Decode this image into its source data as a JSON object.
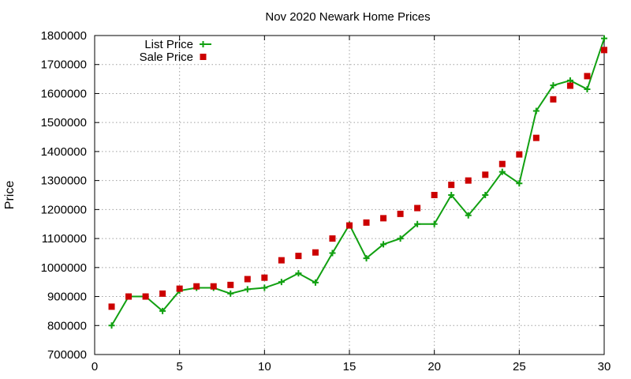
{
  "chart_data": {
    "type": "line",
    "title": "Nov 2020 Newark Home Prices",
    "ylabel": "Price",
    "xlabel": "",
    "xlim": [
      0,
      30
    ],
    "ylim": [
      700000,
      1800000
    ],
    "xticks": [
      0,
      5,
      10,
      15,
      20,
      25,
      30
    ],
    "yticks": [
      700000,
      800000,
      900000,
      1000000,
      1100000,
      1200000,
      1300000,
      1400000,
      1500000,
      1600000,
      1700000,
      1800000
    ],
    "grid": true,
    "legend_position": "top-left",
    "x": [
      1,
      2,
      3,
      4,
      5,
      6,
      7,
      8,
      9,
      10,
      11,
      12,
      13,
      14,
      15,
      16,
      17,
      18,
      19,
      20,
      21,
      22,
      23,
      24,
      25,
      26,
      27,
      28,
      29,
      30
    ],
    "series": [
      {
        "name": "List Price",
        "style": "lines-points",
        "color": "#11a011",
        "marker": "plus",
        "values": [
          800000,
          900000,
          900000,
          850000,
          920000,
          930000,
          930000,
          910000,
          925000,
          930000,
          950000,
          980000,
          948000,
          1050000,
          1148000,
          1032000,
          1080000,
          1100000,
          1150000,
          1150000,
          1250000,
          1180000,
          1250000,
          1330000,
          1290000,
          1540000,
          1628000,
          1645000,
          1615000,
          1790000
        ]
      },
      {
        "name": "Sale Price",
        "style": "points",
        "color": "#cc0000",
        "marker": "square",
        "values": [
          865000,
          900000,
          900000,
          910000,
          927000,
          935000,
          935000,
          940000,
          960000,
          965000,
          1025000,
          1040000,
          1052000,
          1100000,
          1145000,
          1155000,
          1170000,
          1185000,
          1205000,
          1250000,
          1285000,
          1300000,
          1320000,
          1357000,
          1390000,
          1447000,
          1580000,
          1627000,
          1660000,
          1750000
        ]
      }
    ]
  }
}
